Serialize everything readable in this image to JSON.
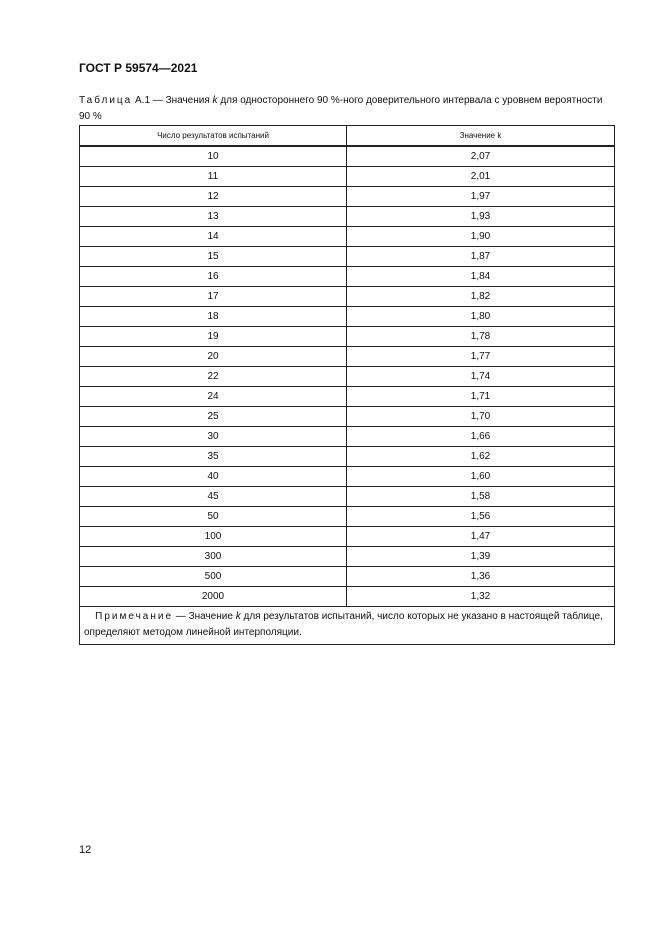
{
  "header": {
    "doc_code": "ГОСТ Р 59574—2021"
  },
  "caption": {
    "label": "Таблица",
    "text_before_k": " А.1 — Значения ",
    "k": "k",
    "text_after_k": " для одностороннего 90 %-ного доверительного интервала с уровнем вероятности 90 %"
  },
  "table": {
    "columns": [
      "Число результатов испытаний",
      "Значение k"
    ],
    "rows": [
      [
        "10",
        "2,07"
      ],
      [
        "11",
        "2,01"
      ],
      [
        "12",
        "1,97"
      ],
      [
        "13",
        "1,93"
      ],
      [
        "14",
        "1,90"
      ],
      [
        "15",
        "1,87"
      ],
      [
        "16",
        "1,84"
      ],
      [
        "17",
        "1,82"
      ],
      [
        "18",
        "1,80"
      ],
      [
        "19",
        "1,78"
      ],
      [
        "20",
        "1,77"
      ],
      [
        "22",
        "1,74"
      ],
      [
        "24",
        "1,71"
      ],
      [
        "25",
        "1,70"
      ],
      [
        "30",
        "1,66"
      ],
      [
        "35",
        "1,62"
      ],
      [
        "40",
        "1,60"
      ],
      [
        "45",
        "1,58"
      ],
      [
        "50",
        "1,56"
      ],
      [
        "100",
        "1,47"
      ],
      [
        "300",
        "1,39"
      ],
      [
        "500",
        "1,36"
      ],
      [
        "2000",
        "1,32"
      ]
    ],
    "note": {
      "label": "Примечание",
      "text_before_k": " — Значение ",
      "k": "k",
      "text_after_k": " для результатов испытаний, число которых не указано в настоящей таблице, определяют методом линейной интерполяции."
    }
  },
  "footer": {
    "page_number": "12"
  }
}
